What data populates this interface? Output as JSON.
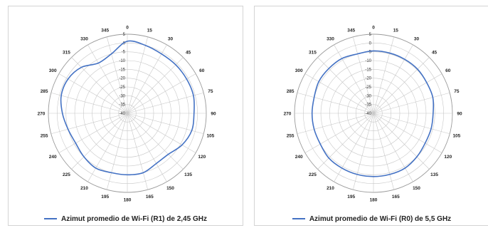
{
  "chart_data": [
    {
      "type": "radar",
      "angle_labels": [
        "0",
        "15",
        "30",
        "45",
        "60",
        "75",
        "90",
        "105",
        "120",
        "135",
        "150",
        "165",
        "180",
        "195",
        "210",
        "225",
        "240",
        "255",
        "270",
        "285",
        "300",
        "315",
        "330",
        "345"
      ],
      "radial_labels": [
        "5",
        "0",
        "-5",
        "-10",
        "-15",
        "-20",
        "-25",
        "-30",
        "-35",
        "-40"
      ],
      "rlim": [
        -40,
        5
      ],
      "grid": true,
      "legend_position": "bottom",
      "series": [
        {
          "name": "Azimut promedio de Wi-Fi (R1) de 2,45 GHz",
          "color": "#4472c4",
          "angles": [
            0,
            15,
            30,
            45,
            60,
            75,
            90,
            105,
            120,
            135,
            150,
            165,
            180,
            195,
            210,
            225,
            240,
            255,
            270,
            285,
            300,
            315,
            330,
            345
          ],
          "values": [
            1,
            0,
            -1,
            -1,
            -1,
            -1,
            -2,
            -2,
            -4,
            -7,
            -7,
            -5,
            -5,
            -5,
            -4,
            -5,
            -6,
            -5,
            -3,
            -1,
            -1,
            -3,
            -7,
            -5
          ]
        }
      ]
    },
    {
      "type": "radar",
      "angle_labels": [
        "0",
        "15",
        "30",
        "45",
        "60",
        "75",
        "90",
        "105",
        "120",
        "135",
        "150",
        "165",
        "180",
        "195",
        "210",
        "225",
        "240",
        "255",
        "270",
        "285",
        "300",
        "315",
        "330",
        "345"
      ],
      "radial_labels": [
        "5",
        "0",
        "-5",
        "-10",
        "-15",
        "-20",
        "-25",
        "-30",
        "-35",
        "-40"
      ],
      "rlim": [
        -40,
        5
      ],
      "grid": true,
      "legend_position": "bottom",
      "series": [
        {
          "name": "Azimut promedio de Wi-Fi (R0) de 5,5 GHz",
          "color": "#4472c4",
          "angles": [
            0,
            15,
            30,
            45,
            60,
            75,
            90,
            105,
            120,
            135,
            150,
            165,
            180,
            195,
            210,
            225,
            240,
            255,
            270,
            285,
            300,
            315,
            330,
            345
          ],
          "values": [
            -4.5,
            -4.5,
            -4.5,
            -4.5,
            -5,
            -5,
            -6,
            -6,
            -6,
            -5,
            -4,
            -4,
            -4,
            -4,
            -4,
            -4,
            -5,
            -5,
            -5,
            -5,
            -4,
            -4,
            -4,
            -5
          ]
        }
      ]
    }
  ]
}
